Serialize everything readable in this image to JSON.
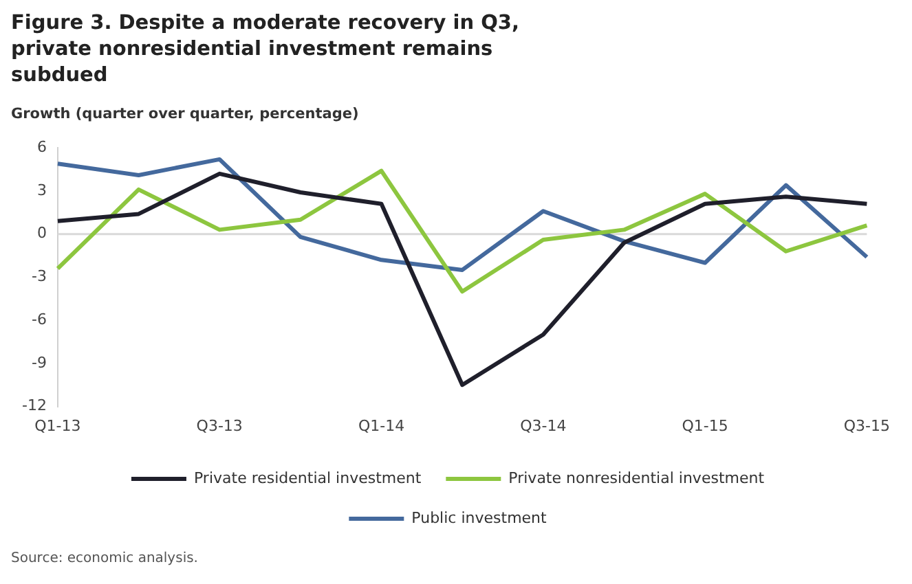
{
  "chart_data": {
    "type": "line",
    "title": "Figure 3. Despite a moderate recovery in Q3, private nonresidential investment remains subdued",
    "ylabel": "Growth (quarter over quarter, percentage)",
    "categories": [
      "Q1-13",
      null,
      "Q3-13",
      null,
      "Q1-14",
      null,
      "Q3-14",
      null,
      "Q1-15",
      null,
      "Q3-15"
    ],
    "series": [
      {
        "name": "Private residential investment",
        "color": "#1f1f2b",
        "values": [
          0.9,
          1.4,
          4.2,
          2.9,
          2.1,
          -10.5,
          -7.0,
          -0.6,
          2.1,
          2.6,
          2.1
        ]
      },
      {
        "name": "Private nonresidential investment",
        "color": "#8dc63f",
        "values": [
          -2.4,
          3.1,
          0.3,
          1.0,
          4.4,
          -4.0,
          -0.4,
          0.3,
          2.8,
          -1.2,
          0.6
        ]
      },
      {
        "name": "Public investment",
        "color": "#44699d",
        "values": [
          4.9,
          4.1,
          5.2,
          -0.2,
          -1.8,
          -2.5,
          1.6,
          -0.5,
          -2.0,
          3.4,
          -1.6
        ]
      }
    ],
    "ylim": [
      -12,
      6
    ],
    "yticks": [
      -12,
      -9,
      -6,
      -3,
      0,
      3,
      6
    ],
    "grid": false,
    "legend": "bottom",
    "marker": "none",
    "line_style": "solid",
    "ref_lines": [
      {
        "axis": "y",
        "value": 0,
        "color": "#d9d9d9"
      }
    ],
    "annotations": [
      "Source: economic analysis."
    ]
  }
}
